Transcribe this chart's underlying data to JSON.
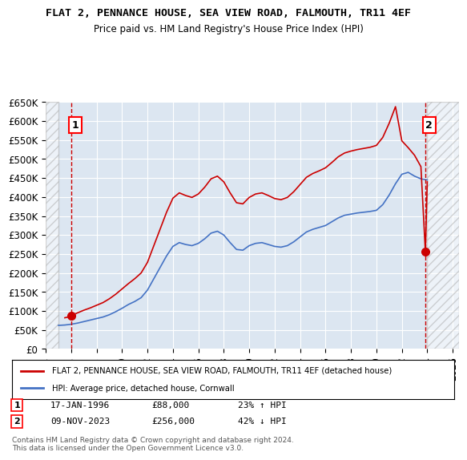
{
  "title": "FLAT 2, PENNANCE HOUSE, SEA VIEW ROAD, FALMOUTH, TR11 4EF",
  "subtitle": "Price paid vs. HM Land Registry's House Price Index (HPI)",
  "xlabel": "",
  "ylabel": "",
  "ylim": [
    0,
    650000
  ],
  "xlim_start": 1994.0,
  "xlim_end": 2026.5,
  "yticks": [
    0,
    50000,
    100000,
    150000,
    200000,
    250000,
    300000,
    350000,
    400000,
    450000,
    500000,
    550000,
    600000,
    650000
  ],
  "ytick_labels": [
    "£0",
    "£50K",
    "£100K",
    "£150K",
    "£200K",
    "£250K",
    "£300K",
    "£350K",
    "£400K",
    "£450K",
    "£500K",
    "£550K",
    "£600K",
    "£650K"
  ],
  "xticks": [
    1994,
    1996,
    1998,
    2000,
    2002,
    2004,
    2006,
    2008,
    2010,
    2012,
    2014,
    2016,
    2018,
    2020,
    2022,
    2024,
    2026
  ],
  "plot_bg_color": "#dce6f1",
  "hatch_color": "#c0c0c0",
  "grid_color": "#ffffff",
  "red_line_color": "#cc0000",
  "blue_line_color": "#4472c4",
  "sale1_x": 1996.04,
  "sale1_y": 88000,
  "sale2_x": 2023.85,
  "sale2_y": 256000,
  "legend_label_red": "FLAT 2, PENNANCE HOUSE, SEA VIEW ROAD, FALMOUTH, TR11 4EF (detached house)",
  "legend_label_blue": "HPI: Average price, detached house, Cornwall",
  "annotation1_label": "1",
  "annotation2_label": "2",
  "table_row1": "1    17-JAN-1996    £88,000    23% ↑ HPI",
  "table_row2": "2    09-NOV-2023    £256,000    42% ↓ HPI",
  "footer": "Contains HM Land Registry data © Crown copyright and database right 2024.\nThis data is licensed under the Open Government Licence v3.0.",
  "hpi_data_x": [
    1995.0,
    1995.5,
    1996.0,
    1996.5,
    1997.0,
    1997.5,
    1998.0,
    1998.5,
    1999.0,
    1999.5,
    2000.0,
    2000.5,
    2001.0,
    2001.5,
    2002.0,
    2002.5,
    2003.0,
    2003.5,
    2004.0,
    2004.5,
    2005.0,
    2005.5,
    2006.0,
    2006.5,
    2007.0,
    2007.5,
    2008.0,
    2008.5,
    2009.0,
    2009.5,
    2010.0,
    2010.5,
    2011.0,
    2011.5,
    2012.0,
    2012.5,
    2013.0,
    2013.5,
    2014.0,
    2014.5,
    2015.0,
    2015.5,
    2016.0,
    2016.5,
    2017.0,
    2017.5,
    2018.0,
    2018.5,
    2019.0,
    2019.5,
    2020.0,
    2020.5,
    2021.0,
    2021.5,
    2022.0,
    2022.5,
    2023.0,
    2023.5,
    2024.0
  ],
  "hpi_data_y": [
    62000,
    63000,
    65000,
    68000,
    72000,
    76000,
    80000,
    84000,
    90000,
    98000,
    107000,
    117000,
    125000,
    135000,
    155000,
    185000,
    215000,
    245000,
    270000,
    280000,
    275000,
    272000,
    278000,
    290000,
    305000,
    310000,
    300000,
    280000,
    262000,
    260000,
    272000,
    278000,
    280000,
    275000,
    270000,
    268000,
    272000,
    282000,
    295000,
    308000,
    315000,
    320000,
    325000,
    335000,
    345000,
    352000,
    355000,
    358000,
    360000,
    362000,
    365000,
    380000,
    405000,
    435000,
    460000,
    465000,
    455000,
    448000,
    445000
  ],
  "property_data_x": [
    1995.5,
    1996.0,
    1996.04,
    1996.5,
    1997.0,
    1997.5,
    1998.0,
    1998.5,
    1999.0,
    1999.5,
    2000.0,
    2000.5,
    2001.0,
    2001.5,
    2002.0,
    2002.5,
    2003.0,
    2003.5,
    2004.0,
    2004.5,
    2005.0,
    2005.5,
    2006.0,
    2006.5,
    2007.0,
    2007.5,
    2008.0,
    2008.5,
    2009.0,
    2009.5,
    2010.0,
    2010.5,
    2011.0,
    2011.5,
    2012.0,
    2012.5,
    2013.0,
    2013.5,
    2014.0,
    2014.5,
    2015.0,
    2015.5,
    2016.0,
    2016.5,
    2017.0,
    2017.5,
    2018.0,
    2018.5,
    2019.0,
    2019.5,
    2020.0,
    2020.5,
    2021.0,
    2021.5,
    2022.0,
    2022.5,
    2023.0,
    2023.5,
    2023.85,
    2024.0
  ],
  "property_data_y": [
    82000,
    86000,
    88000,
    95000,
    102000,
    108000,
    115000,
    122000,
    132000,
    144000,
    158000,
    172000,
    185000,
    200000,
    228000,
    272000,
    316000,
    360000,
    397000,
    411000,
    404000,
    399000,
    408000,
    426000,
    448000,
    455000,
    440000,
    411000,
    385000,
    382000,
    399000,
    408000,
    411000,
    404000,
    396000,
    393000,
    399000,
    414000,
    433000,
    452000,
    462000,
    469000,
    477000,
    491000,
    506000,
    516000,
    521000,
    525000,
    528000,
    531000,
    536000,
    557000,
    594000,
    638000,
    548000,
    530000,
    510000,
    480000,
    256000,
    440000
  ]
}
